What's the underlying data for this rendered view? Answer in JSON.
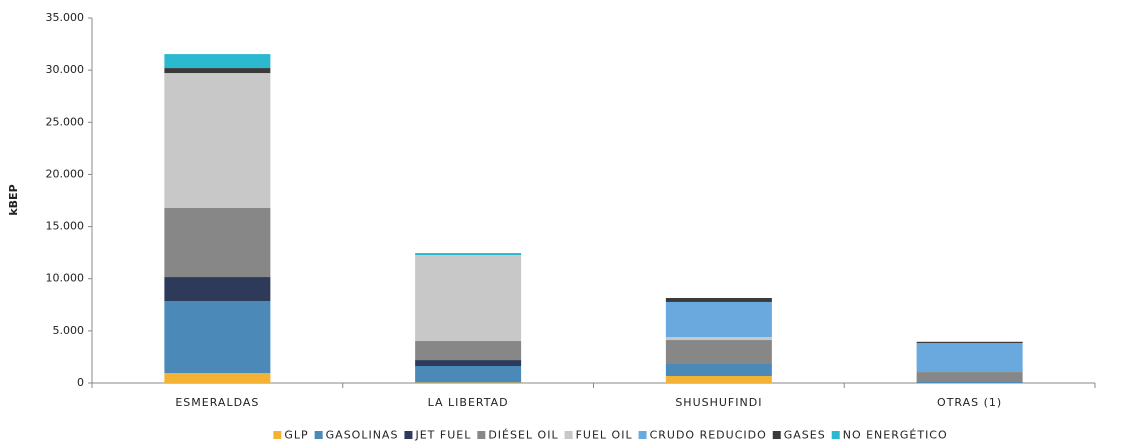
{
  "chart_data": {
    "type": "stacked_bar",
    "y_label": "kBEP",
    "categories": [
      "ESMERALDAS",
      "LA LIBERTAD",
      "SHUSHUFINDI",
      "OTRAS (1)"
    ],
    "series": [
      {
        "name": "GLP",
        "color": "#f4b234",
        "values": [
          950,
          50,
          670,
          0
        ]
      },
      {
        "name": "GASOLINAS",
        "color": "#4a89b8",
        "values": [
          6910,
          1580,
          1150,
          150
        ]
      },
      {
        "name": "JET FUEL",
        "color": "#2e3a5a",
        "values": [
          2300,
          570,
          0,
          0
        ]
      },
      {
        "name": "DIÉSEL OIL",
        "color": "#878787",
        "values": [
          6620,
          1830,
          2300,
          900
        ]
      },
      {
        "name": "FUEL OIL",
        "color": "#c8c8c8",
        "values": [
          12940,
          8240,
          290,
          0
        ]
      },
      {
        "name": "CRUDO REDUCIDO",
        "color": "#6aa9dd",
        "values": [
          0,
          0,
          3360,
          2780
        ]
      },
      {
        "name": "GASES",
        "color": "#3a3a3a",
        "values": [
          480,
          0,
          380,
          120
        ]
      },
      {
        "name": "NO ENERGÉTICO",
        "color": "#2bb9d0",
        "values": [
          1340,
          190,
          0,
          0
        ]
      }
    ],
    "ylim": [
      0,
      35000
    ],
    "yticks": [
      0,
      {
        "value": 5000,
        "label": "5.000"
      },
      {
        "value": 10000,
        "label": "10.000"
      },
      {
        "value": 15000,
        "label": "15.000"
      },
      {
        "value": 20000,
        "label": "20.000"
      },
      {
        "value": 25000,
        "label": "25.000"
      },
      {
        "value": 30000,
        "label": "30.000"
      },
      {
        "value": 35000,
        "label": "35.000"
      }
    ],
    "grid": false,
    "legend": "bottom"
  }
}
